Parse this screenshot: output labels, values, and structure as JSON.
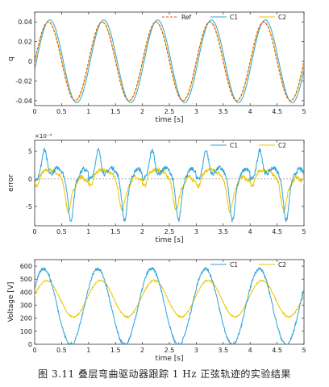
{
  "caption": "图 3.11 叠层弯曲驱动器跟踪 1 Hz 正弦轨迹的实验结果",
  "colors": {
    "ref": "#e0502a",
    "c1": "#2ea3d8",
    "c2": "#ecc600",
    "axis": "#333333",
    "zero": "#999999"
  },
  "chart_data": [
    {
      "type": "line",
      "title": "",
      "xlabel": "time [s]",
      "ylabel": "q",
      "xlim": [
        0,
        5
      ],
      "ylim": [
        -0.045,
        0.05
      ],
      "xticks": [
        "0",
        "0.5",
        "1",
        "1.5",
        "2",
        "2.5",
        "3",
        "3.5",
        "4",
        "4.5",
        "5"
      ],
      "yticks": [
        "-0.04",
        "-0.02",
        "0",
        "0.02",
        "0.04"
      ],
      "ytick_values": [
        -0.04,
        -0.02,
        0,
        0.02,
        0.04
      ],
      "legend": "top-right",
      "series": [
        {
          "name": "Ref",
          "style": "dashed",
          "amplitude": 0.04,
          "frequency_hz": 1,
          "phase": 0,
          "noise": 0
        },
        {
          "name": "C1",
          "style": "solid",
          "amplitude": 0.042,
          "frequency_hz": 1,
          "phase": -0.2,
          "noise": 0
        },
        {
          "name": "C2",
          "style": "solid",
          "amplitude": 0.04,
          "frequency_hz": 1,
          "phase": -0.05,
          "noise": 0
        }
      ]
    },
    {
      "type": "line",
      "title": "",
      "xlabel": "time [s]",
      "ylabel": "error",
      "exponent_label": "×10⁻³",
      "xlim": [
        0,
        5
      ],
      "ylim": [
        -8.5,
        7
      ],
      "xticks": [
        "0",
        "0.5",
        "1",
        "1.5",
        "2",
        "2.5",
        "3",
        "3.5",
        "4",
        "4.5",
        "5"
      ],
      "yticks": [
        "-5",
        "0",
        "5"
      ],
      "ytick_values": [
        -5,
        0,
        5
      ],
      "zero_line": true,
      "legend": "top-right",
      "series": [
        {
          "name": "C1",
          "shape": "error_c1",
          "unit_scale": 0.001,
          "noise": 0.4
        },
        {
          "name": "C2",
          "shape": "error_c2",
          "unit_scale": 0.001,
          "noise": 0.35
        }
      ]
    },
    {
      "type": "line",
      "title": "",
      "xlabel": "time [s]",
      "ylabel": "Voltage [V]",
      "xlim": [
        0,
        5
      ],
      "ylim": [
        0,
        650
      ],
      "xticks": [
        "0",
        "0.5",
        "1",
        "1.5",
        "2",
        "2.5",
        "3",
        "3.5",
        "4",
        "4.5",
        "5"
      ],
      "yticks": [
        "0",
        "100",
        "200",
        "300",
        "400",
        "500",
        "600"
      ],
      "ytick_values": [
        0,
        100,
        200,
        300,
        400,
        500,
        600
      ],
      "legend": "top-right",
      "series": [
        {
          "name": "C1",
          "shape": "voltage_c1",
          "max": 570,
          "min": 0,
          "noise": 12
        },
        {
          "name": "C2",
          "shape": "voltage_c2",
          "max": 490,
          "min": 210,
          "noise": 6
        }
      ]
    }
  ]
}
